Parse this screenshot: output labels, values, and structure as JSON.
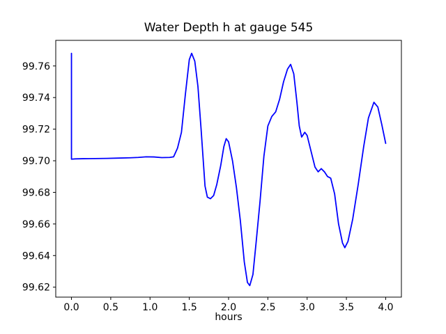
{
  "figure": {
    "background": "#ffffff"
  },
  "chart_data": {
    "type": "line",
    "title": "Water Depth h at gauge 545",
    "xlabel": "hours",
    "ylabel": "",
    "grid": false,
    "legend": null,
    "line_color": "#0000ff",
    "line_width": 1.8,
    "axis_color": "#000000",
    "xlim": [
      -0.2,
      4.2
    ],
    "ylim": [
      99.6137,
      99.7762
    ],
    "xticks": {
      "values": [
        0.0,
        0.5,
        1.0,
        1.5,
        2.0,
        2.5,
        3.0,
        3.5,
        4.0
      ],
      "labels": [
        "0.0",
        "0.5",
        "1.0",
        "1.5",
        "2.0",
        "2.5",
        "3.0",
        "3.5",
        "4.0"
      ]
    },
    "yticks": {
      "values": [
        99.62,
        99.64,
        99.66,
        99.68,
        99.7,
        99.72,
        99.74,
        99.76
      ],
      "labels": [
        "99.62",
        "99.64",
        "99.66",
        "99.68",
        "99.70",
        "99.72",
        "99.74",
        "99.76"
      ]
    },
    "series": [
      {
        "name": "h",
        "x": [
          0.0,
          0.0,
          0.05,
          0.15,
          0.3,
          0.45,
          0.6,
          0.75,
          0.85,
          0.95,
          1.05,
          1.15,
          1.25,
          1.3,
          1.35,
          1.4,
          1.45,
          1.5,
          1.53,
          1.57,
          1.61,
          1.65,
          1.7,
          1.73,
          1.77,
          1.81,
          1.85,
          1.9,
          1.94,
          1.97,
          2.0,
          2.05,
          2.1,
          2.15,
          2.2,
          2.24,
          2.27,
          2.31,
          2.35,
          2.4,
          2.45,
          2.5,
          2.55,
          2.6,
          2.65,
          2.7,
          2.75,
          2.79,
          2.83,
          2.87,
          2.9,
          2.93,
          2.97,
          3.0,
          3.05,
          3.1,
          3.14,
          3.18,
          3.22,
          3.26,
          3.3,
          3.35,
          3.4,
          3.45,
          3.48,
          3.52,
          3.58,
          3.65,
          3.72,
          3.78,
          3.85,
          3.9,
          3.95,
          4.0
        ],
        "y": [
          99.768,
          99.701,
          99.7012,
          99.7013,
          99.7014,
          99.7015,
          99.7017,
          99.7019,
          99.7021,
          99.7025,
          99.7024,
          99.702,
          99.7021,
          99.7025,
          99.708,
          99.718,
          99.742,
          99.764,
          99.768,
          99.763,
          99.747,
          99.72,
          99.684,
          99.677,
          99.676,
          99.678,
          99.685,
          99.697,
          99.709,
          99.714,
          99.712,
          99.7,
          99.683,
          99.662,
          99.636,
          99.623,
          99.621,
          99.628,
          99.648,
          99.674,
          99.703,
          99.722,
          99.728,
          99.731,
          99.739,
          99.75,
          99.758,
          99.761,
          99.755,
          99.737,
          99.722,
          99.715,
          99.718,
          99.716,
          99.706,
          99.696,
          99.693,
          99.695,
          99.693,
          99.69,
          99.689,
          99.679,
          99.66,
          99.648,
          99.645,
          99.649,
          99.663,
          99.685,
          99.709,
          99.727,
          99.737,
          99.734,
          99.723,
          99.711
        ]
      }
    ]
  }
}
